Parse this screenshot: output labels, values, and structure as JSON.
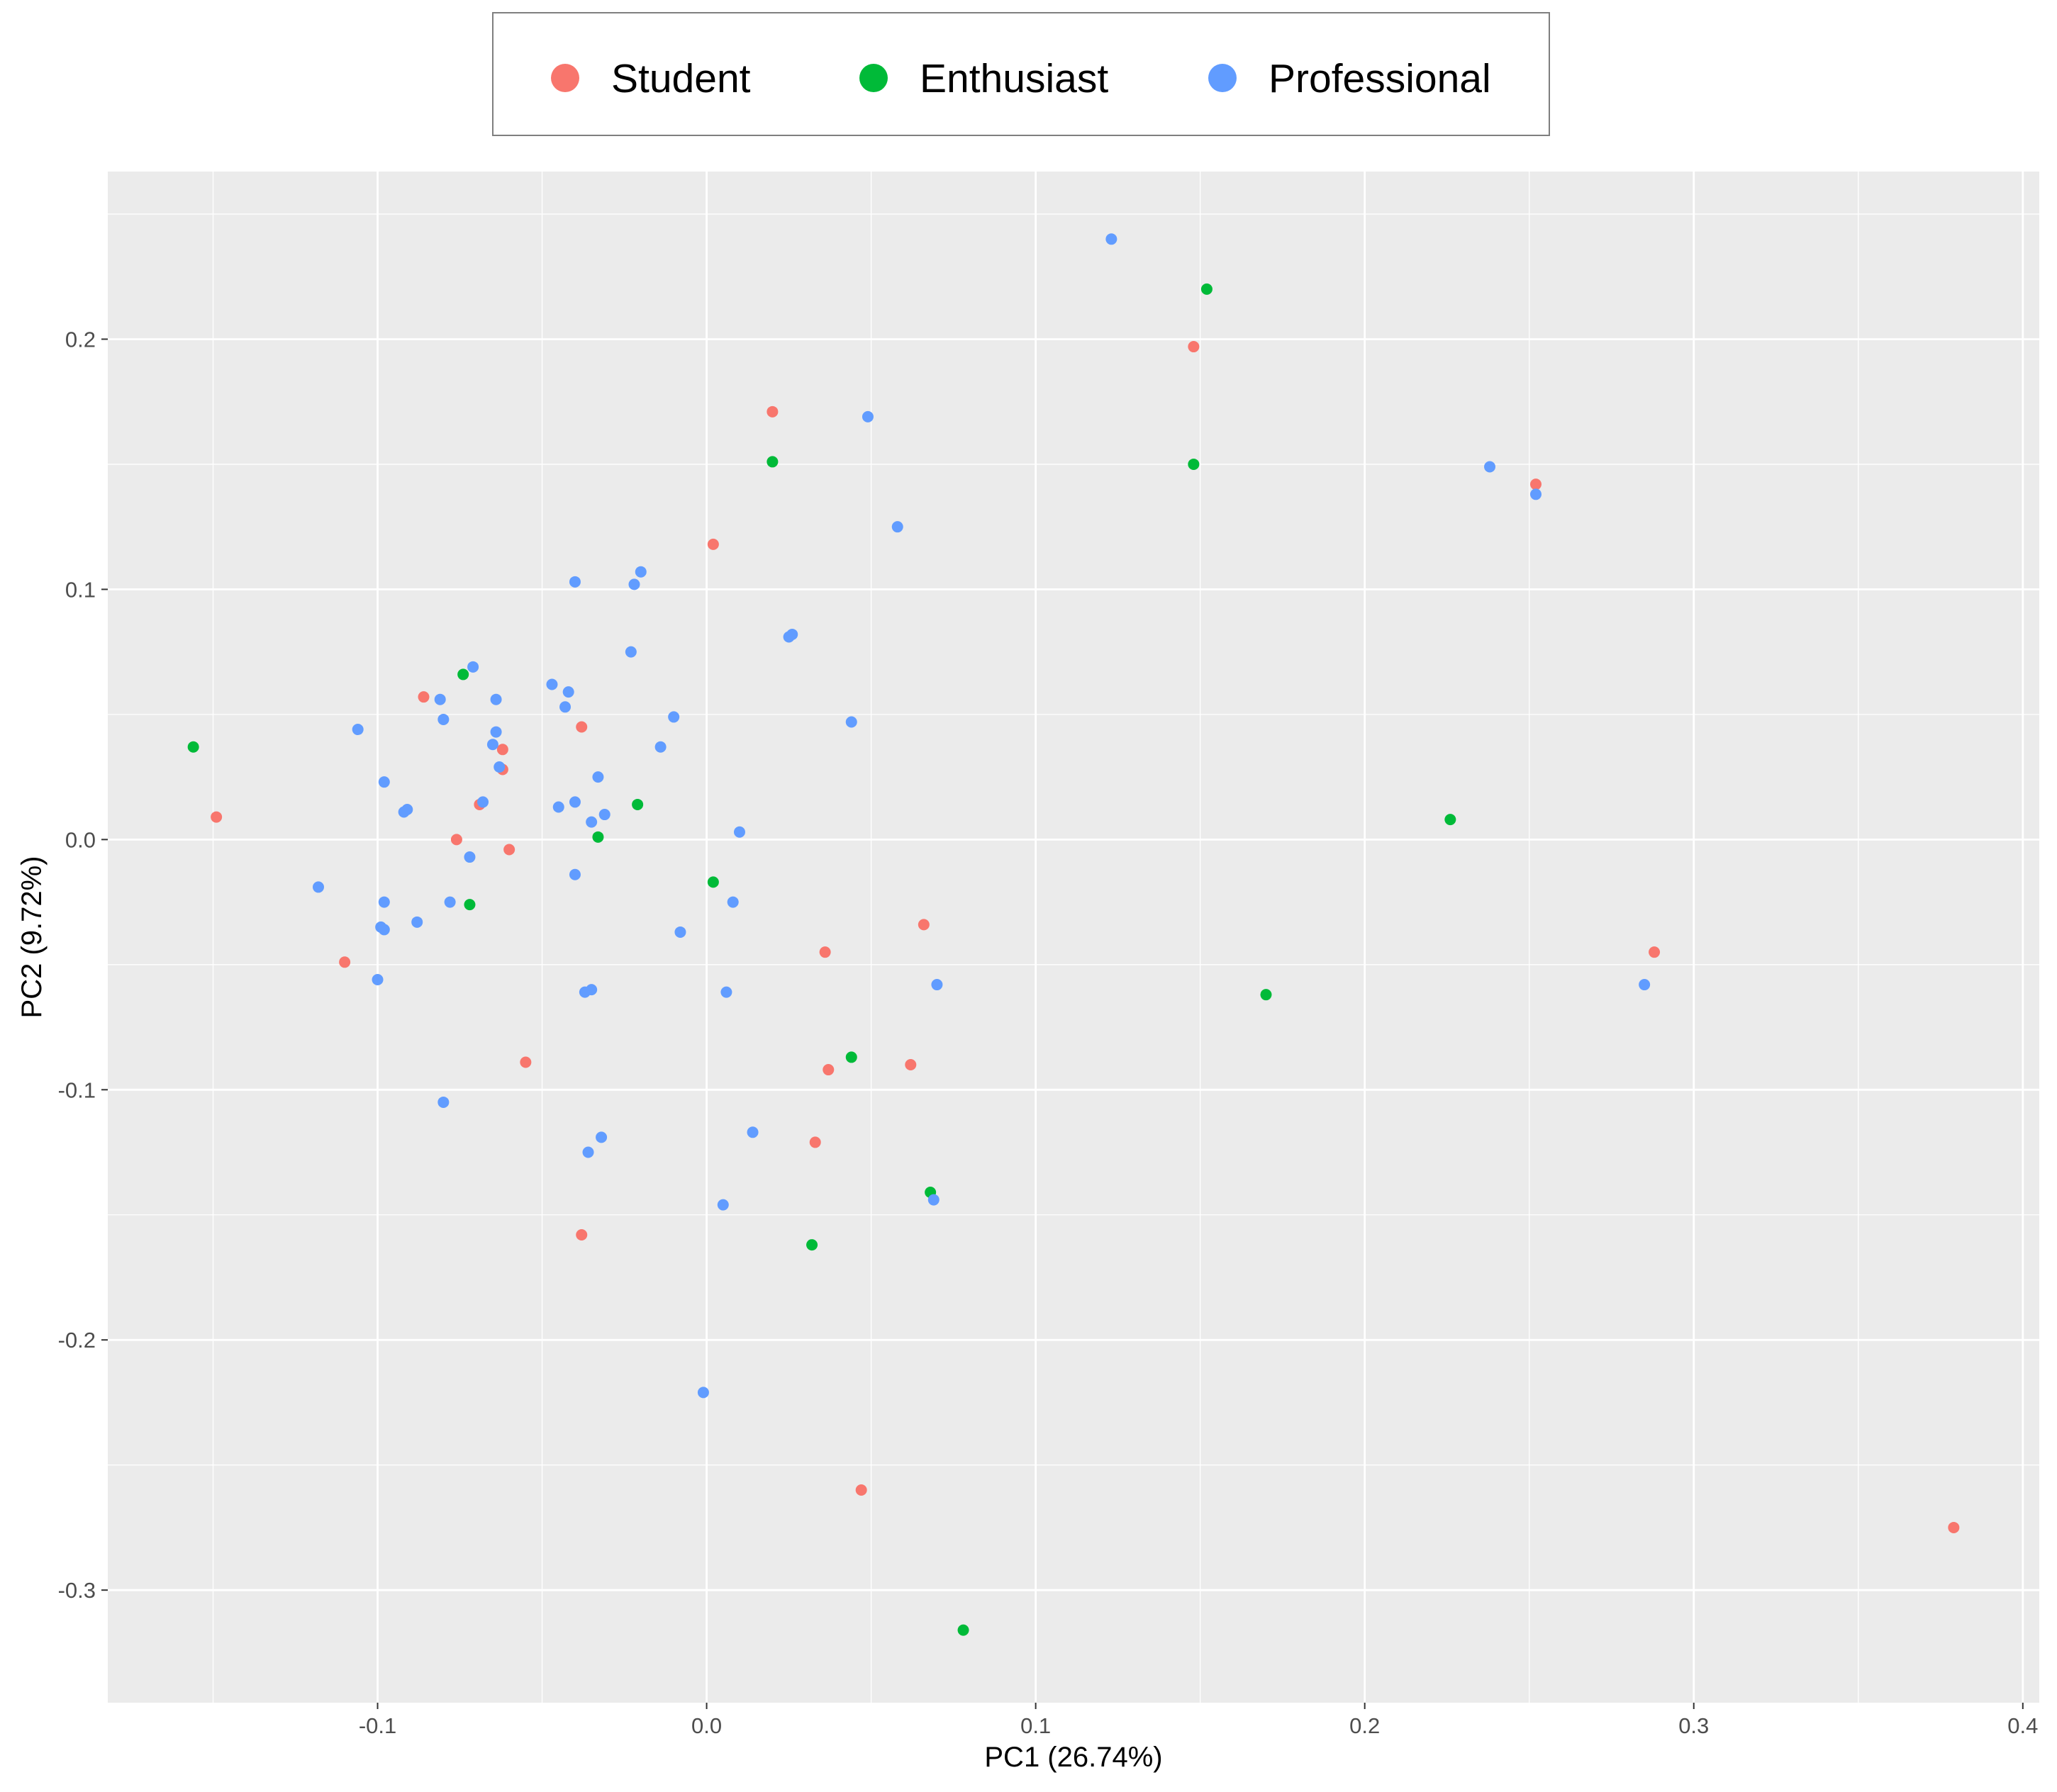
{
  "chart_data": {
    "type": "scatter",
    "title": "",
    "xlabel": "PC1 (26.74%)",
    "ylabel": "PC2 (9.72%)",
    "xlim": [
      -0.182,
      0.405
    ],
    "ylim": [
      -0.345,
      0.267
    ],
    "x_ticks": [
      -0.1,
      0.0,
      0.1,
      0.2,
      0.3,
      0.4
    ],
    "x_tick_labels": [
      "-0.1",
      "0.0",
      "0.1",
      "0.2",
      "0.3",
      "0.4"
    ],
    "y_ticks": [
      -0.3,
      -0.2,
      -0.1,
      0.0,
      0.1,
      0.2
    ],
    "y_tick_labels": [
      "-0.3",
      "-0.2",
      "-0.1",
      "0.0",
      "0.1",
      "0.2"
    ],
    "grid": true,
    "legend_position": "top",
    "panel_background": "#EBEBEB",
    "series": [
      {
        "name": "Student",
        "color": "#F8766D",
        "points": [
          [
            0.02,
            0.171
          ],
          [
            0.148,
            0.197
          ],
          [
            0.002,
            0.118
          ],
          [
            0.252,
            0.142
          ],
          [
            -0.086,
            0.057
          ],
          [
            -0.038,
            0.045
          ],
          [
            -0.062,
            0.036
          ],
          [
            -0.062,
            0.028
          ],
          [
            -0.069,
            0.014
          ],
          [
            -0.076,
            0.0
          ],
          [
            -0.06,
            -0.004
          ],
          [
            -0.149,
            0.009
          ],
          [
            -0.11,
            -0.049
          ],
          [
            -0.055,
            -0.089
          ],
          [
            0.036,
            -0.045
          ],
          [
            0.066,
            -0.034
          ],
          [
            0.288,
            -0.045
          ],
          [
            0.037,
            -0.092
          ],
          [
            0.062,
            -0.09
          ],
          [
            0.033,
            -0.121
          ],
          [
            -0.038,
            -0.158
          ],
          [
            0.047,
            -0.26
          ],
          [
            0.379,
            -0.275
          ]
        ]
      },
      {
        "name": "Enthusiast",
        "color": "#00BA38",
        "points": [
          [
            0.152,
            0.22
          ],
          [
            0.02,
            0.151
          ],
          [
            0.148,
            0.15
          ],
          [
            -0.074,
            0.066
          ],
          [
            -0.156,
            0.037
          ],
          [
            -0.021,
            0.014
          ],
          [
            -0.033,
            0.001
          ],
          [
            0.002,
            -0.017
          ],
          [
            -0.072,
            -0.026
          ],
          [
            0.226,
            0.008
          ],
          [
            0.17,
            -0.062
          ],
          [
            0.044,
            -0.087
          ],
          [
            0.068,
            -0.141
          ],
          [
            0.032,
            -0.162
          ],
          [
            0.078,
            -0.316
          ]
        ]
      },
      {
        "name": "Professional",
        "color": "#619CFF",
        "points": [
          [
            0.123,
            0.24
          ],
          [
            0.049,
            0.169
          ],
          [
            0.058,
            0.125
          ],
          [
            0.238,
            0.149
          ],
          [
            0.252,
            0.138
          ],
          [
            -0.02,
            0.107
          ],
          [
            -0.022,
            0.102
          ],
          [
            -0.04,
            0.103
          ],
          [
            -0.023,
            0.075
          ],
          [
            0.025,
            0.081
          ],
          [
            0.026,
            0.082
          ],
          [
            -0.071,
            0.069
          ],
          [
            -0.081,
            0.056
          ],
          [
            -0.064,
            0.056
          ],
          [
            -0.047,
            0.062
          ],
          [
            -0.042,
            0.059
          ],
          [
            -0.043,
            0.053
          ],
          [
            -0.01,
            0.049
          ],
          [
            0.044,
            0.047
          ],
          [
            -0.08,
            0.048
          ],
          [
            -0.106,
            0.044
          ],
          [
            -0.064,
            0.043
          ],
          [
            -0.065,
            0.038
          ],
          [
            -0.014,
            0.037
          ],
          [
            -0.063,
            0.029
          ],
          [
            -0.033,
            0.025
          ],
          [
            -0.098,
            0.023
          ],
          [
            -0.04,
            0.015
          ],
          [
            -0.045,
            0.013
          ],
          [
            -0.068,
            0.015
          ],
          [
            -0.092,
            0.011
          ],
          [
            -0.091,
            0.012
          ],
          [
            -0.031,
            0.01
          ],
          [
            -0.035,
            0.007
          ],
          [
            0.01,
            0.003
          ],
          [
            -0.072,
            -0.007
          ],
          [
            -0.04,
            -0.014
          ],
          [
            -0.118,
            -0.019
          ],
          [
            -0.078,
            -0.025
          ],
          [
            -0.098,
            -0.025
          ],
          [
            0.008,
            -0.025
          ],
          [
            -0.088,
            -0.033
          ],
          [
            -0.099,
            -0.035
          ],
          [
            -0.098,
            -0.036
          ],
          [
            -0.008,
            -0.037
          ],
          [
            -0.1,
            -0.056
          ],
          [
            -0.037,
            -0.061
          ],
          [
            -0.035,
            -0.06
          ],
          [
            0.006,
            -0.061
          ],
          [
            0.07,
            -0.058
          ],
          [
            0.285,
            -0.058
          ],
          [
            -0.08,
            -0.105
          ],
          [
            -0.032,
            -0.119
          ],
          [
            -0.036,
            -0.125
          ],
          [
            0.014,
            -0.117
          ],
          [
            0.005,
            -0.146
          ],
          [
            0.069,
            -0.144
          ],
          [
            -0.001,
            -0.221
          ]
        ]
      }
    ]
  }
}
